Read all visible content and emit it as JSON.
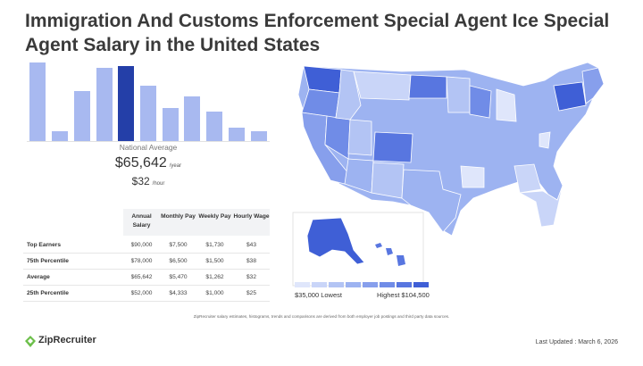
{
  "title": "Immigration And Customs Enforcement Special Agent Ice Special Agent Salary in the United States",
  "histogram": {
    "values": [
      100,
      13,
      64,
      93,
      96,
      71,
      42,
      57,
      37,
      17,
      12
    ],
    "active_index": 4,
    "color": "#a8b9f0",
    "active_color": "#243fa8"
  },
  "national_average": {
    "label": "National Average",
    "yearly": "$65,642",
    "yearly_unit": "/year",
    "hourly": "$32",
    "hourly_unit": "/hour"
  },
  "table": {
    "columns": [
      "Annual Salary",
      "Monthly Pay",
      "Weekly Pay",
      "Hourly Wage"
    ],
    "rows": [
      {
        "label": "Top Earners",
        "values": [
          "$90,000",
          "$7,500",
          "$1,730",
          "$43"
        ]
      },
      {
        "label": "75th Percentile",
        "values": [
          "$78,000",
          "$6,500",
          "$1,500",
          "$38"
        ]
      },
      {
        "label": "Average",
        "values": [
          "$65,642",
          "$5,470",
          "$1,262",
          "$32"
        ]
      },
      {
        "label": "25th Percentile",
        "values": [
          "$52,000",
          "$4,333",
          "$1,000",
          "$25"
        ]
      }
    ]
  },
  "legend": {
    "low_label": "$35,000 Lowest",
    "high_label": "Highest $104,500",
    "colors": [
      "#dfe6fb",
      "#c9d5f8",
      "#b3c4f4",
      "#9db3f1",
      "#879fec",
      "#708ce7",
      "#5876e0",
      "#3f5fd6"
    ]
  },
  "footnote": "ZipRecruiter salary estimates, histograms, trends and comparisons are derived from both employer job postings and third party data sources.",
  "logo_text": "ZipRecruiter",
  "last_updated": "Last Updated : March 6, 2026"
}
